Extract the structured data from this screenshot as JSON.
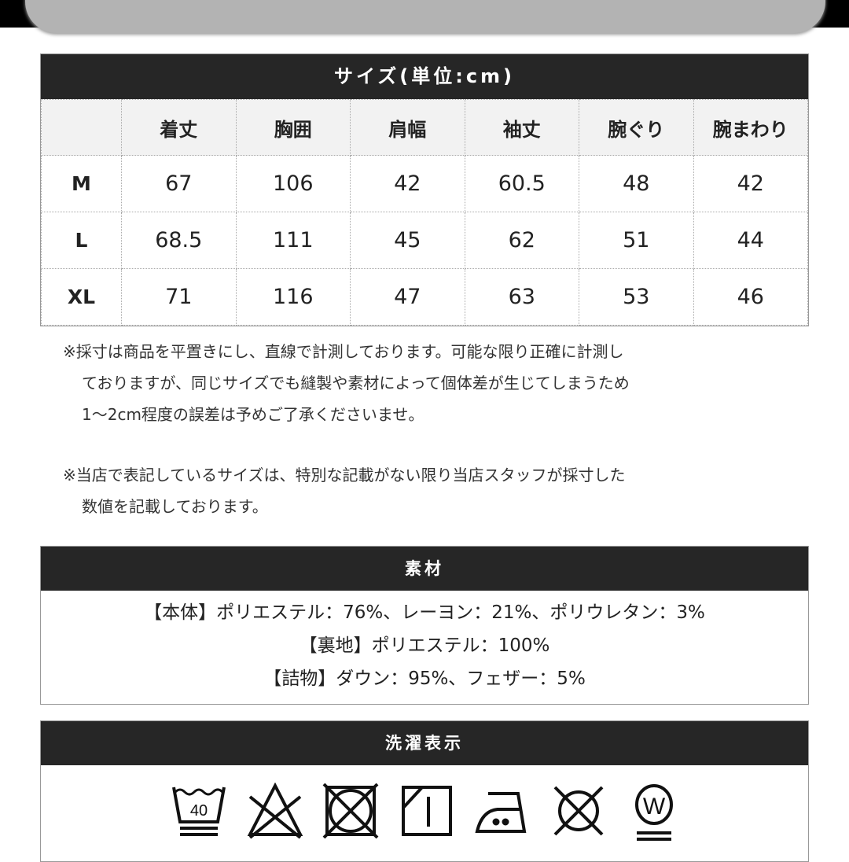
{
  "size_table": {
    "title": "サイズ(単位:cm)",
    "columns": [
      "",
      "着丈",
      "胸囲",
      "肩幅",
      "袖丈",
      "腕ぐり",
      "腕まわり"
    ],
    "rows": [
      [
        "M",
        "67",
        "106",
        "42",
        "60.5",
        "48",
        "42"
      ],
      [
        "L",
        "68.5",
        "111",
        "45",
        "62",
        "51",
        "44"
      ],
      [
        "XL",
        "71",
        "116",
        "47",
        "63",
        "53",
        "46"
      ]
    ]
  },
  "notes": [
    [
      "※採寸は商品を平置きにし、直線で計測しております。可能な限り正確に計測し",
      "ておりますが、同じサイズでも縫製や素材によって個体差が生じてしまうため",
      "1～2cm程度の誤差は予めご了承くださいませ。"
    ],
    [
      "※当店で表記しているサイズは、特別な記載がない限り当店スタッフが採寸した",
      "数値を記載しております。"
    ]
  ],
  "material": {
    "title": "素材",
    "lines": [
      "【本体】ポリエステル：76%、レーヨン：21%、ポリウレタン：3%",
      "【裏地】ポリエステル：100%",
      "【詰物】ダウン：95%、フェザー：5%"
    ]
  },
  "care": {
    "title": "洗濯表示",
    "wash_temp": "40",
    "dry_clean_letter": "W",
    "icons": [
      "wash-40-gentle-icon",
      "no-bleach-icon",
      "no-tumble-dry-icon",
      "line-dry-shade-icon",
      "iron-medium-icon",
      "no-dry-clean-icon",
      "wet-clean-gentle-icon"
    ]
  }
}
